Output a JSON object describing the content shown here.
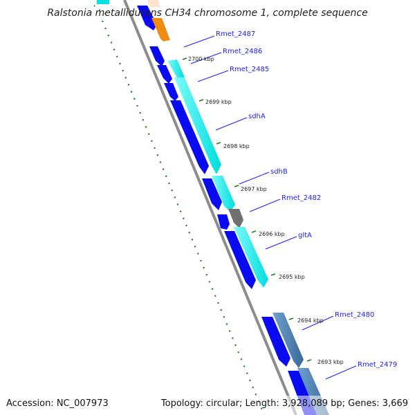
{
  "title": "Ralstonia metallidurans CH34 chromosome 1, complete sequence",
  "footer": {
    "accession": "Accession: NC_007973",
    "summary": "Topology: circular; Length: 3,928,089 bp; Genes: 3,669"
  },
  "tick_labels": [
    "2700 kbp",
    "2699 kbp",
    "2698 kbp",
    "2697 kbp",
    "2696 kbp",
    "2695 kbp",
    "2694 kbp",
    "2693 kbp"
  ],
  "gene_labels": [
    "Rmet_2487",
    "Rmet_2486",
    "Rmet_2485",
    "sdhA",
    "sdhB",
    "Rmet_2482",
    "gltA",
    "Rmet_2480",
    "Rmet_2479"
  ],
  "colors": {
    "cds_blue": "#0a0af0",
    "cds_cyan": "#00f0f0",
    "cds_orange": "#f08c14",
    "cds_gray": "#707070",
    "cds_steel": "#4a7fb0",
    "backbone": "#8c8c8c",
    "gc_dots": "#1a7a1a",
    "label_blue": "#1a1aff"
  }
}
